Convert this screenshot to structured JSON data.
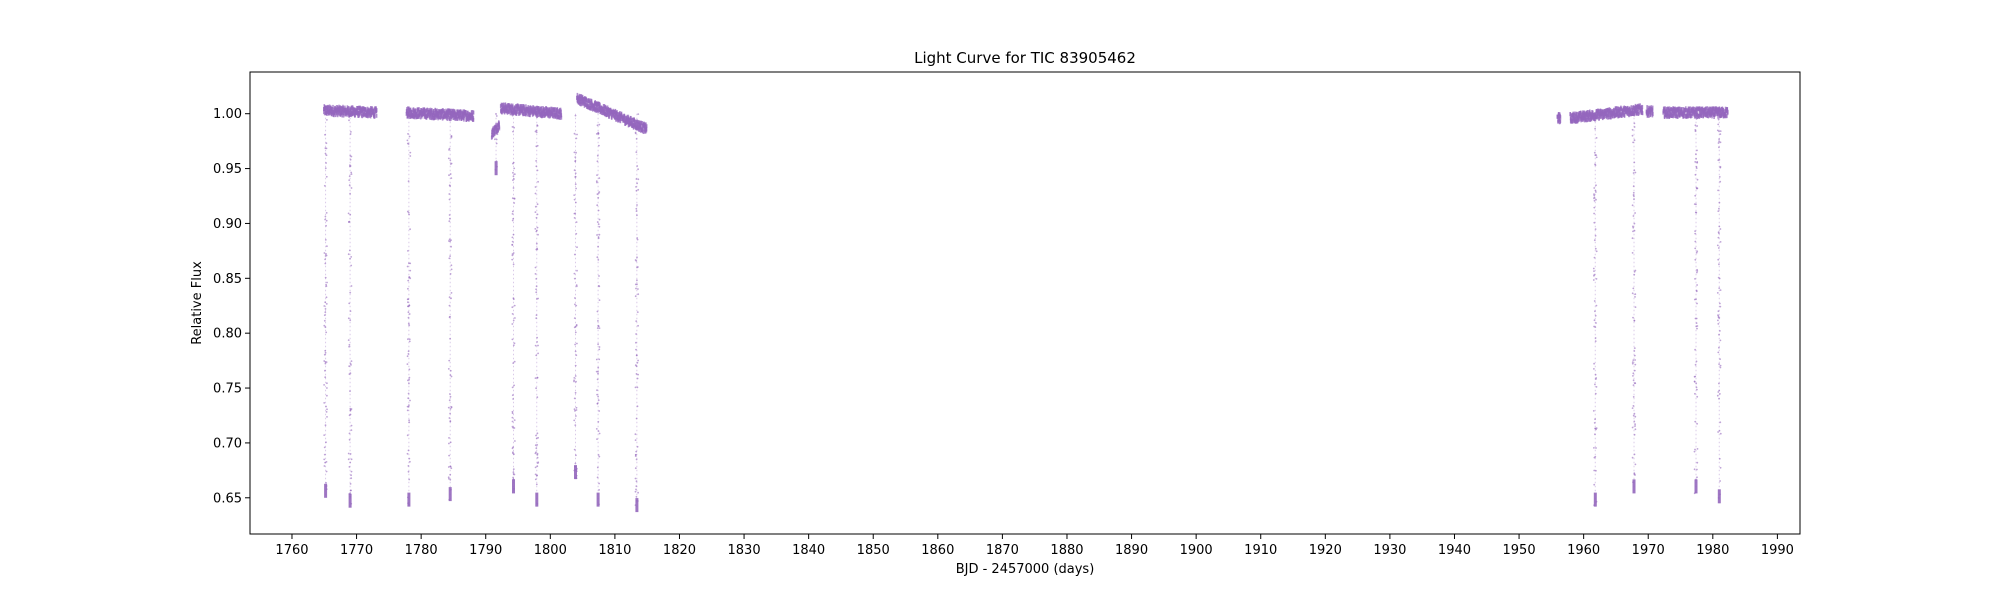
{
  "chart_data": {
    "type": "scatter",
    "title": "Light Curve for TIC 83905462",
    "xlabel": "BJD - 2457000 (days)",
    "ylabel": "Relative Flux",
    "xlim": [
      1753.5,
      1993.5
    ],
    "ylim": [
      0.617,
      1.038
    ],
    "xticks": [
      1760,
      1770,
      1780,
      1790,
      1800,
      1810,
      1820,
      1830,
      1840,
      1850,
      1860,
      1870,
      1880,
      1890,
      1900,
      1910,
      1920,
      1930,
      1940,
      1950,
      1960,
      1970,
      1980,
      1990
    ],
    "yticks": [
      0.65,
      0.7,
      0.75,
      0.8,
      0.85,
      0.9,
      0.95,
      1.0
    ],
    "ytick_labels": [
      "0.65",
      "0.70",
      "0.75",
      "0.80",
      "0.85",
      "0.90",
      "0.95",
      "1.00"
    ],
    "grid": false,
    "marker_color": "#9467bd",
    "segments": [
      {
        "x": [
          1764.8,
          1773.0
        ],
        "y": [
          1.003,
          1.001
        ]
      },
      {
        "x": [
          1777.6,
          1788.0
        ],
        "y": [
          1.001,
          0.998
        ]
      },
      {
        "x": [
          1790.8,
          1792.0
        ],
        "y": [
          0.982,
          0.99
        ]
      },
      {
        "x": [
          1792.2,
          1801.6
        ],
        "y": [
          1.005,
          1.0
        ]
      },
      {
        "x": [
          1804.0,
          1814.8
        ],
        "y": [
          1.014,
          0.986
        ]
      },
      {
        "x": [
          1955.8,
          1956.3
        ],
        "y": [
          0.996,
          0.996
        ]
      },
      {
        "x": [
          1957.8,
          1969.0
        ],
        "y": [
          0.996,
          1.004
        ]
      },
      {
        "x": [
          1969.6,
          1970.6
        ],
        "y": [
          1.002,
          1.002
        ]
      },
      {
        "x": [
          1972.2,
          1982.2
        ],
        "y": [
          1.001,
          1.001
        ]
      }
    ],
    "eclipses": [
      {
        "x": 1765.2,
        "min": 0.65
      },
      {
        "x": 1769.0,
        "min": 0.641
      },
      {
        "x": 1778.1,
        "min": 0.642
      },
      {
        "x": 1784.5,
        "min": 0.647
      },
      {
        "x": 1794.3,
        "min": 0.654
      },
      {
        "x": 1797.9,
        "min": 0.642
      },
      {
        "x": 1803.9,
        "min": 0.667
      },
      {
        "x": 1807.4,
        "min": 0.642
      },
      {
        "x": 1813.4,
        "min": 0.637
      },
      {
        "x": 1961.8,
        "min": 0.642
      },
      {
        "x": 1967.8,
        "min": 0.654
      },
      {
        "x": 1977.4,
        "min": 0.654
      },
      {
        "x": 1981.0,
        "min": 0.645
      }
    ],
    "shallow_dips": [
      {
        "x": 1791.6,
        "min": 0.944
      }
    ]
  }
}
